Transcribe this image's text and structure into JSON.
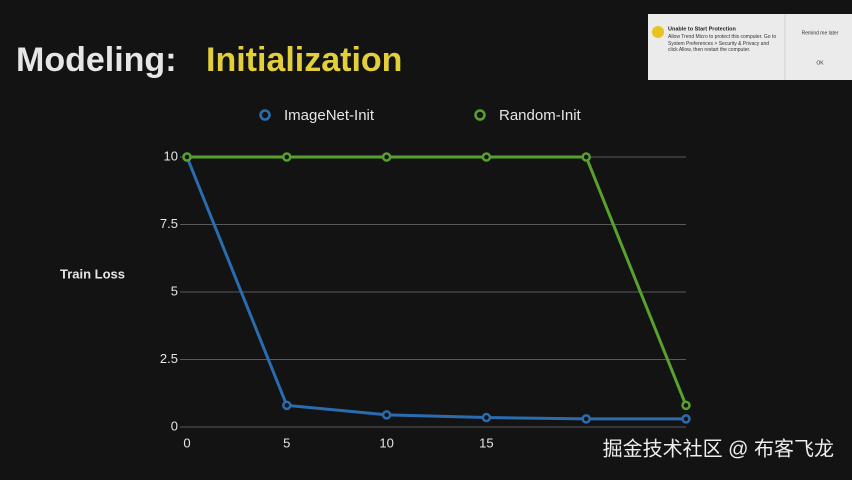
{
  "slide": {
    "title_prefix": "Modeling:",
    "title_highlight": "Initialization"
  },
  "chart_data": {
    "type": "line",
    "y_label": "Train Loss",
    "x": [
      0,
      5,
      10,
      15,
      20,
      25
    ],
    "series": [
      {
        "name": "ImageNet-Init",
        "color": "#2b6cb0",
        "values": [
          10,
          0.8,
          0.45,
          0.35,
          0.3,
          0.3
        ]
      },
      {
        "name": "Random-Init",
        "color": "#58a12e",
        "values": [
          10,
          10,
          10,
          10,
          10,
          0.8
        ]
      }
    ],
    "xlim": [
      0,
      25
    ],
    "xticks": [
      0,
      5,
      10,
      15
    ],
    "ylim": [
      0,
      10
    ],
    "yticks": [
      0,
      2.5,
      5,
      7.5,
      10
    ],
    "grid": true,
    "legend": "top"
  },
  "popup": {
    "title": "Unable to Start Protection",
    "body": "Allow Trend Micro to protect this computer. Go to System Preferences > Security & Privacy and click Allow, then restart the computer.",
    "buttons": [
      "Remind me later",
      "OK"
    ]
  },
  "watermark": "掘金技术社区 @ 布客飞龙"
}
